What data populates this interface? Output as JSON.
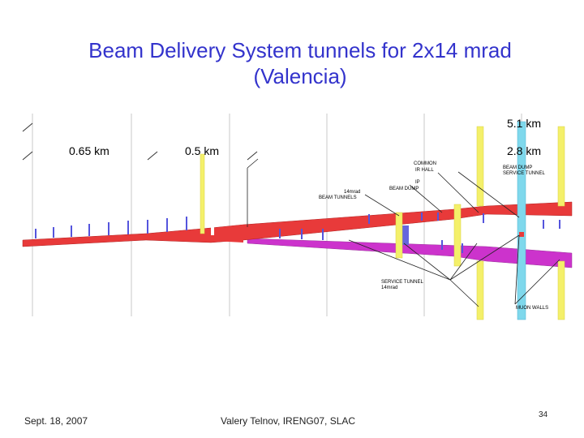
{
  "slide": {
    "title_line1": "Beam Delivery System tunnels for 2x14 mrad",
    "title_line2": "(Valencia)"
  },
  "diagram": {
    "distances": {
      "d_065": "0.65 km",
      "d_05": "0.5 km",
      "d_51": "5.1 km",
      "d_28": "2.8 km"
    },
    "labels": {
      "common_hall": [
        "COMMON",
        "IR HALL"
      ],
      "beam_dump": [
        "IP",
        "BEAM DUMP"
      ],
      "beam_tunnels": [
        "14mrad",
        "BEAM TUNNELS"
      ],
      "beam_dump_service": [
        "BEAM DUMP",
        "SERVICE TUNNEL"
      ],
      "service_tunnel": [
        "SERVICE TUNNEL",
        "14mrad"
      ],
      "muon_walls": [
        "MUON WALLS"
      ]
    },
    "colors": {
      "beamline_red": "#e83a3a",
      "beamline_magenta": "#cc33cc",
      "shaft_yellow": "#f4f06a",
      "shaft_cyan": "#7fd8ec",
      "title_blue": "#3333cc"
    }
  },
  "footer": {
    "date": "Sept. 18, 2007",
    "author": "Valery Telnov, IRENG07, SLAC",
    "page": "34"
  }
}
